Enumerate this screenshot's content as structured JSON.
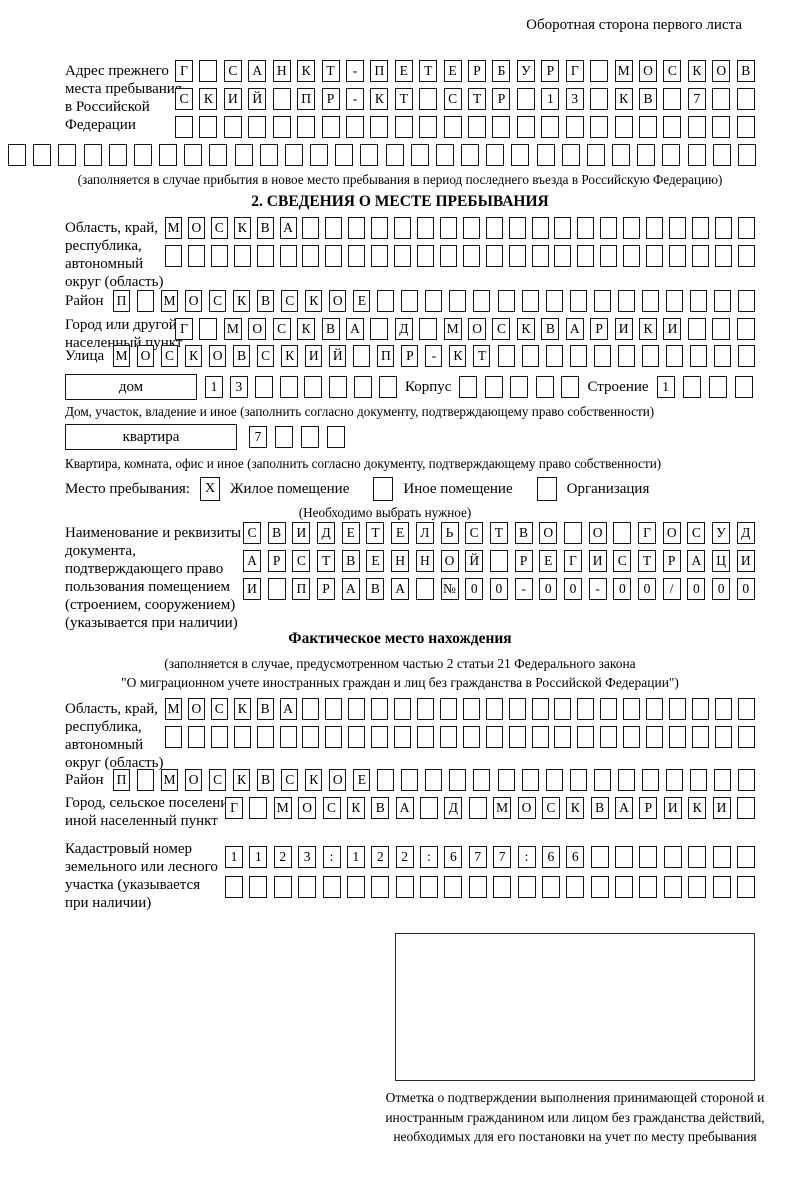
{
  "header_note": "Оборотная сторона первого листа",
  "prev_address": {
    "label": "Адрес прежнего места пребывания в Российской Федерации",
    "rows": [
      {
        "text": "Г САНКТ-ПЕТЕРБУРГ МОСКОВ",
        "len": 24
      },
      {
        "text": "СКИЙ ПР-КТ СТР 13 КВ 7",
        "len": 24
      },
      {
        "text": "",
        "len": 24
      },
      {
        "text": "",
        "len": 30
      }
    ],
    "caption": "(заполняется в случае прибытия в новое место пребывания в период последнего въезда в Российскую Федерацию)"
  },
  "section2": {
    "title": "2. СВЕДЕНИЯ О МЕСТЕ ПРЕБЫВАНИЯ",
    "region": {
      "label": "Область, край, республика, автономный округ (область)",
      "rows": [
        {
          "text": "МОСКВА",
          "len": 26
        },
        {
          "text": "",
          "len": 26
        }
      ]
    },
    "district": {
      "label": "Район",
      "row": {
        "text": "П МОСКВСКОЕ",
        "len": 27
      }
    },
    "city": {
      "label": "Город или другой населенный пункт",
      "row": {
        "text": "Г МОСКВА Д МОСКВАРИКИ",
        "len": 24
      }
    },
    "street": {
      "label": "Улица",
      "row": {
        "text": "МОСКОВСКИЙ ПР-КТ",
        "len": 27
      }
    },
    "house": {
      "box_label": "дом",
      "cells": {
        "text": "13",
        "len": 8
      },
      "korpus_label": "Корпус",
      "korpus_cells": {
        "text": "",
        "len": 5
      },
      "stroenie_label": "Строение",
      "stroenie_cells": {
        "text": "1",
        "len": 4
      },
      "caption": "Дом, участок, владение и иное (заполнить согласно документу, подтверждающему право собственности)"
    },
    "apartment": {
      "box_label": "квартира",
      "cells": {
        "text": "7",
        "len": 4
      },
      "caption": "Квартира, комната, офис и иное (заполнить согласно документу, подтверждающему право собственности)"
    },
    "place_type": {
      "label": "Место пребывания:",
      "options": [
        {
          "label": "Жилое помещение",
          "mark": "X"
        },
        {
          "label": "Иное помещение",
          "mark": ""
        },
        {
          "label": "Организация",
          "mark": ""
        }
      ],
      "caption": "(Необходимо выбрать нужное)"
    },
    "document": {
      "label": "Наименование и реквизиты документа, подтверждающего право пользования помещением (строением, сооружением) (указывается при наличии)",
      "rows": [
        {
          "text": "СВИДЕТЕЛЬСТВО О ГОСУД",
          "len": 21
        },
        {
          "text": "АРСТВЕННОЙ РЕГИСТРАЦИ",
          "len": 21
        },
        {
          "text": "И ПРАВА №00-00-00/000",
          "len": 21
        }
      ]
    }
  },
  "actual_location": {
    "title": "Фактическое место нахождения",
    "caption_line1": "(заполняется в случае, предусмотренном частью 2 статьи 21 Федерального закона",
    "caption_line2": "\"О миграционном учете иностранных граждан и лиц без гражданства в Российской Федерации\")",
    "region": {
      "label": "Область, край, республика, автономный округ (область)",
      "rows": [
        {
          "text": "МОСКВА",
          "len": 26
        },
        {
          "text": "",
          "len": 26
        }
      ]
    },
    "district": {
      "label": "Район",
      "row": {
        "text": "П МОСКВСКОЕ",
        "len": 27
      }
    },
    "city": {
      "label": "Город, сельское поселение, иной населенный пункт",
      "row": {
        "text": "Г МОСКВА Д МОСКВАРИКИ",
        "len": 22
      }
    },
    "cadastral": {
      "label": "Кадастровый номер земельного или лесного участка (указывается при наличии)",
      "rows": [
        {
          "text": "1123:122:677:66",
          "len": 22
        },
        {
          "text": "",
          "len": 22
        }
      ]
    },
    "stamp_caption": "Отметка о подтверждении выполнения принимающей стороной и иностранным гражданином или лицом без гражданства действий, необходимых для его постановки на учет по месту пребывания"
  }
}
